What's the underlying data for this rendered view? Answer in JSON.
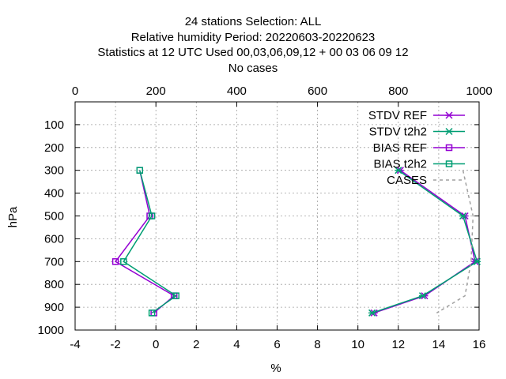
{
  "title_lines": [
    "24 stations Selection: ALL",
    "Relative humidity  Period: 20220603-20220623",
    "Statistics at 12 UTC  Used  00,03,06,09,12  + 00 03 06 09 12",
    "No cases"
  ],
  "chart_data": {
    "type": "line",
    "xlabel": "%",
    "ylabel": "hPa",
    "xlim": [
      -4,
      16
    ],
    "x2lim": [
      0,
      1000
    ],
    "ylim": [
      1000,
      0
    ],
    "x_ticks": [
      "-4",
      "-2",
      "0",
      "2",
      "4",
      "6",
      "8",
      "10",
      "12",
      "14",
      "16"
    ],
    "x2_ticks": [
      "0",
      "200",
      "400",
      "600",
      "800",
      "1000"
    ],
    "y_ticks": [
      "100",
      "200",
      "300",
      "400",
      "500",
      "600",
      "700",
      "800",
      "900",
      "1000"
    ],
    "grid": true,
    "legend_position": "top-right",
    "series": [
      {
        "name": "STDV REF",
        "color": "#9400d3",
        "marker": "x-star",
        "points": [
          [
            12.1,
            300
          ],
          [
            15.3,
            500
          ],
          [
            15.8,
            700
          ],
          [
            13.3,
            850
          ],
          [
            10.8,
            925
          ]
        ]
      },
      {
        "name": "STDV t2h2",
        "color": "#009e73",
        "marker": "x-star",
        "points": [
          [
            12.0,
            300
          ],
          [
            15.2,
            500
          ],
          [
            15.9,
            700
          ],
          [
            13.2,
            850
          ],
          [
            10.7,
            925
          ]
        ]
      },
      {
        "name": "BIAS REF",
        "color": "#9400d3",
        "marker": "square",
        "points": [
          [
            -0.8,
            300
          ],
          [
            -0.3,
            500
          ],
          [
            -2.0,
            700
          ],
          [
            0.9,
            850
          ],
          [
            -0.1,
            925
          ]
        ]
      },
      {
        "name": "BIAS t2h2",
        "color": "#009e73",
        "marker": "square",
        "points": [
          [
            -0.8,
            300
          ],
          [
            -0.2,
            500
          ],
          [
            -1.6,
            700
          ],
          [
            1.0,
            850
          ],
          [
            -0.2,
            925
          ]
        ]
      },
      {
        "name": "CASES",
        "color": "#a0a0a0",
        "dashed": true,
        "axis": "x2",
        "points": [
          [
            960,
            300
          ],
          [
            985,
            500
          ],
          [
            980,
            700
          ],
          [
            965,
            850
          ],
          [
            895,
            925
          ]
        ]
      }
    ]
  }
}
